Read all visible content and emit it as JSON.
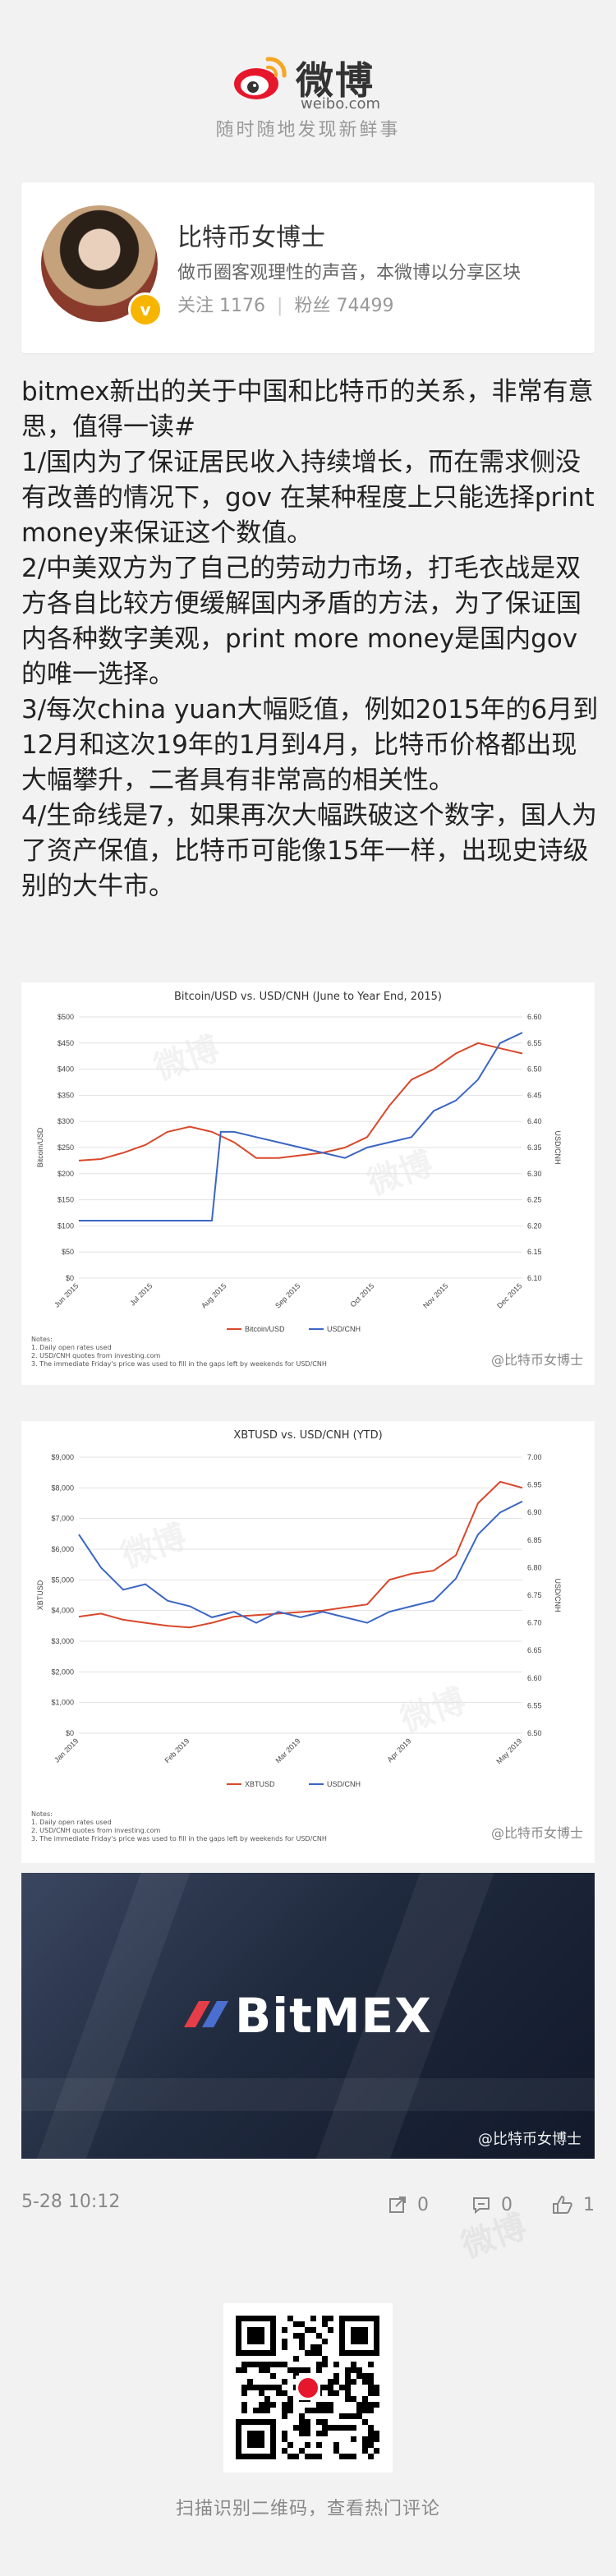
{
  "header": {
    "logo_text": "微博",
    "logo_sub": "weibo.com",
    "slogan": "随时随地发现新鲜事"
  },
  "profile": {
    "name": "比特币女博士",
    "description": "做币圈客观理性的声音，本微博以分享区块",
    "following_label": "关注",
    "following_count": "1176",
    "followers_label": "粉丝",
    "followers_count": "74499"
  },
  "post": {
    "text": "bitmex新出的关于中国和比特币的关系，非常有意思，值得一读#\n1/国内为了保证居民收入持续增长，而在需求侧没有改善的情况下，gov 在某种程度上只能选择print money来保证这个数值。\n2/中美双方为了自己的劳动力市场，打毛衣战是双方各自比较方便缓解国内矛盾的方法，为了保证国内各种数字美观，print more money是国内gov的唯一选择。\n3/每次china yuan大幅贬值，例如2015年的6月到12月和这次19年的1月到4月，比特币价格都出现大幅攀升，二者具有非常高的相关性。\n4/生命线是7，如果再次大幅跌破这个数字，国人为了资产保值，比特币可能像15年一样，出现史诗级别的大牛市。",
    "date": "5-28 10:12",
    "repost_count": "0",
    "comment_count": "0",
    "like_count": "1"
  },
  "watermark": "@比特币女博士",
  "bitmex_logo": "BitMEX",
  "footer": {
    "qr_caption": "扫描识别二维码，查看热门评论"
  },
  "chart_data": [
    {
      "type": "line",
      "title": "Bitcoin/USD vs. USD/CNH (June to Year End, 2015)",
      "ylabel": "Bitcoin/USD",
      "y2label": "USD/CNH",
      "ylim": [
        0,
        500
      ],
      "y2lim": [
        6.1,
        6.6
      ],
      "yticks": [
        "$0",
        "$50",
        "$100",
        "$150",
        "$200",
        "$250",
        "$300",
        "$350",
        "$400",
        "$450",
        "$500"
      ],
      "y2ticks": [
        "6.10",
        "6.15",
        "6.20",
        "6.25",
        "6.30",
        "6.35",
        "6.40",
        "6.45",
        "6.50",
        "6.55",
        "6.60"
      ],
      "xticks": [
        "Jun 2015",
        "Jul 2015",
        "Aug 2015",
        "Sep 2015",
        "Oct 2015",
        "Nov 2015",
        "Dec 2015"
      ],
      "grid": true,
      "legend": "bottom",
      "notes": "Notes:\n1. Daily open rates used\n2. USD/CNH quotes from investing.com\n3. The immediate Friday's price was used to fill in the gaps left by weekends for USD/CNH",
      "series": [
        {
          "name": "Bitcoin/USD",
          "axis": "left",
          "color": "#d9482b",
          "x": [
            0,
            0.05,
            0.1,
            0.15,
            0.2,
            0.25,
            0.3,
            0.35,
            0.4,
            0.45,
            0.5,
            0.55,
            0.6,
            0.65,
            0.7,
            0.75,
            0.8,
            0.85,
            0.9,
            0.95,
            1.0
          ],
          "values": [
            225,
            228,
            240,
            255,
            280,
            290,
            280,
            260,
            230,
            230,
            235,
            240,
            250,
            270,
            330,
            380,
            400,
            430,
            450,
            440,
            430
          ]
        },
        {
          "name": "USD/CNH",
          "axis": "right",
          "color": "#3b66c4",
          "x": [
            0,
            0.05,
            0.1,
            0.15,
            0.2,
            0.25,
            0.3,
            0.32,
            0.35,
            0.4,
            0.45,
            0.5,
            0.55,
            0.6,
            0.65,
            0.7,
            0.75,
            0.8,
            0.85,
            0.9,
            0.95,
            1.0
          ],
          "values": [
            6.21,
            6.21,
            6.21,
            6.21,
            6.21,
            6.21,
            6.21,
            6.38,
            6.38,
            6.37,
            6.36,
            6.35,
            6.34,
            6.33,
            6.35,
            6.36,
            6.37,
            6.42,
            6.44,
            6.48,
            6.55,
            6.57
          ]
        }
      ]
    },
    {
      "type": "line",
      "title": "XBTUSD vs. USD/CNH (YTD)",
      "ylabel": "XBTUSD",
      "y2label": "USD/CNH",
      "ylim": [
        0,
        9000
      ],
      "y2lim": [
        6.5,
        7.0
      ],
      "yticks": [
        "$0",
        "$1,000",
        "$2,000",
        "$3,000",
        "$4,000",
        "$5,000",
        "$6,000",
        "$7,000",
        "$8,000",
        "$9,000"
      ],
      "y2ticks": [
        "6.50",
        "6.55",
        "6.60",
        "6.65",
        "6.70",
        "6.75",
        "6.80",
        "6.85",
        "6.90",
        "6.95",
        "7.00"
      ],
      "xticks": [
        "Jan 2019",
        "Feb 2019",
        "Mar 2019",
        "Apr 2019",
        "May 2019"
      ],
      "grid": true,
      "legend": "bottom",
      "notes": "Notes:\n1. Daily open rates used\n2. USD/CNH quotes from investing.com\n3. The immediate Friday's price was used to fill in the gaps left by weekends for USD/CNH",
      "series": [
        {
          "name": "XBTUSD",
          "axis": "left",
          "color": "#d9482b",
          "x": [
            0,
            0.05,
            0.1,
            0.15,
            0.2,
            0.25,
            0.3,
            0.35,
            0.4,
            0.45,
            0.5,
            0.55,
            0.6,
            0.65,
            0.7,
            0.75,
            0.8,
            0.85,
            0.9,
            0.95,
            1.0
          ],
          "values": [
            3800,
            3900,
            3700,
            3600,
            3500,
            3450,
            3600,
            3800,
            3850,
            3900,
            3950,
            4000,
            4100,
            4200,
            5000,
            5200,
            5300,
            5800,
            7500,
            8200,
            8000
          ]
        },
        {
          "name": "USD/CNH",
          "axis": "right",
          "color": "#3b66c4",
          "x": [
            0,
            0.05,
            0.1,
            0.15,
            0.2,
            0.25,
            0.3,
            0.35,
            0.4,
            0.45,
            0.5,
            0.55,
            0.6,
            0.65,
            0.7,
            0.75,
            0.8,
            0.85,
            0.9,
            0.95,
            1.0
          ],
          "values": [
            6.86,
            6.8,
            6.76,
            6.77,
            6.74,
            6.73,
            6.71,
            6.72,
            6.7,
            6.72,
            6.71,
            6.72,
            6.71,
            6.7,
            6.72,
            6.73,
            6.74,
            6.78,
            6.86,
            6.9,
            6.92
          ]
        }
      ]
    }
  ]
}
